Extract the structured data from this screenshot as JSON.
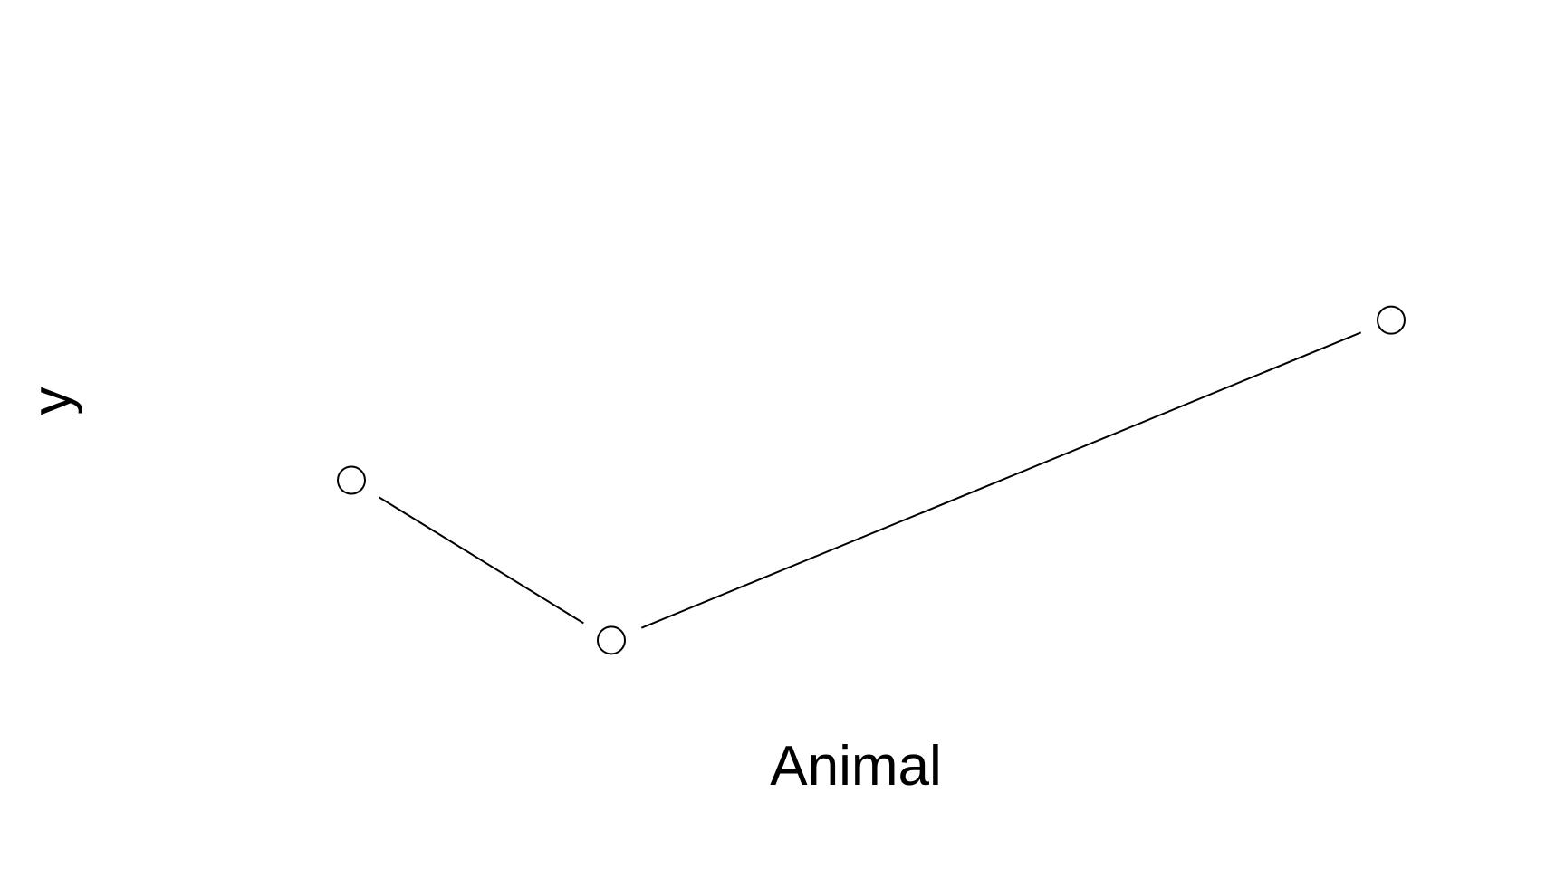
{
  "chart_data": {
    "type": "line",
    "x": [
      1,
      2,
      5
    ],
    "values": [
      2.0,
      1.0,
      3.0
    ],
    "xlabel": "Animal",
    "ylabel": "y",
    "xlim": [
      0.0,
      6.0
    ],
    "ylim": [
      -1.0,
      5.0
    ],
    "axes_visible": false,
    "grid": false,
    "marker": "open-circle",
    "line_color": "#000000",
    "background": "#ffffff"
  }
}
